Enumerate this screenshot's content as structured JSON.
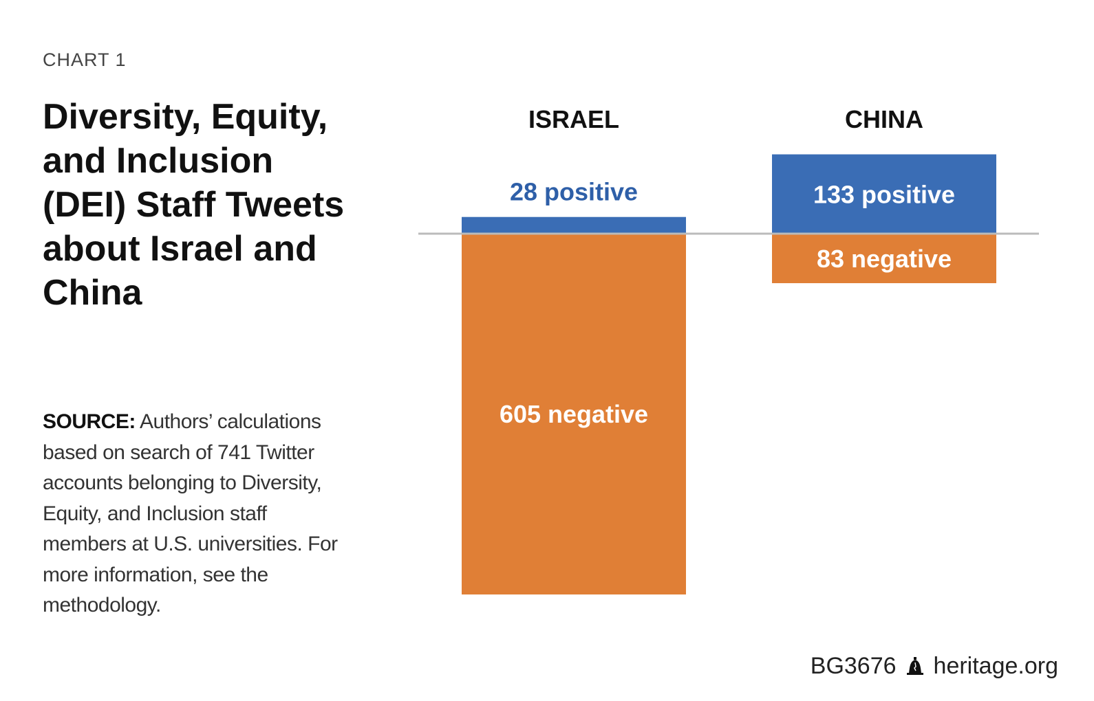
{
  "kicker": "CHART 1",
  "title": "Diversity, Equity, and Inclusion (DEI) Staff Tweets about Israel and China",
  "source": {
    "lead": "SOURCE:",
    "text": " Authors’ calculations based on search of 741 Twitter accounts belonging to Diversity, Equity, and Inclusion staff members at U.S. universities. For more information, see the methodology."
  },
  "footer": {
    "code": "BG3676",
    "site": "heritage.org",
    "icon": "liberty-bell-icon"
  },
  "colors": {
    "positive": "#3A6DB5",
    "negative": "#E07F36",
    "baseline": "#BBBBBB",
    "positive_label_outside": "#2E5FA8"
  },
  "chart_data": {
    "type": "bar",
    "categories": [
      "ISRAEL",
      "CHINA"
    ],
    "series": [
      {
        "key": "positive",
        "values": [
          28,
          133
        ],
        "labels": [
          "28 positive",
          "133 positive"
        ]
      },
      {
        "key": "negative",
        "values": [
          605,
          83
        ],
        "labels": [
          "605 negative",
          "83 negative"
        ]
      }
    ],
    "orientation": "diverging",
    "grid": false,
    "legend": "none"
  }
}
